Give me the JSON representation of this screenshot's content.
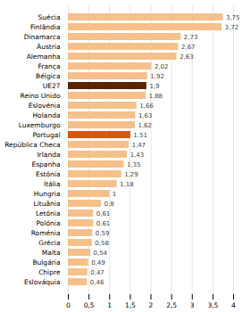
{
  "chart_data": {
    "type": "bar",
    "orientation": "horizontal",
    "categories": [
      "Eslováquia",
      "Chipre",
      "Bulgária",
      "Malta",
      "Grécia",
      "Roménia",
      "Polónia",
      "Letónia",
      "Lituânia",
      "Hungria",
      "Itália",
      "Estónia",
      "Espanha",
      "Irlanda",
      "República Checa",
      "Portugal",
      "Luxemburgo",
      "Holanda",
      "Eslovénia",
      "Reino Unido",
      "UE27",
      "Bélgica",
      "França",
      "Alemanha",
      "Áustria",
      "Dinamarca",
      "Finlândia",
      "Suécia"
    ],
    "values": [
      0.46,
      0.47,
      0.49,
      0.54,
      0.58,
      0.59,
      0.61,
      0.61,
      0.8,
      1,
      1.18,
      1.29,
      1.35,
      1.43,
      1.47,
      1.51,
      1.62,
      1.63,
      1.66,
      1.88,
      1.9,
      1.92,
      2.02,
      2.63,
      2.67,
      2.73,
      3.72,
      3.75
    ],
    "value_labels": [
      "0,46",
      "0,47",
      "0,49",
      "0,54",
      "0,58",
      "0,59",
      "0,61",
      "0,61",
      "0,8",
      "1",
      "1,18",
      "1,29",
      "1,35",
      "1,43",
      "1,47",
      "1,51",
      "1,62",
      "1,63",
      "1,66",
      "1,88",
      "1,9",
      "1,92",
      "2,02",
      "2,63",
      "2,67",
      "2,73",
      "3,72",
      "3,75"
    ],
    "colors": [
      "#f5c08a",
      "#f5c08a",
      "#f5c08a",
      "#f5c08a",
      "#f5c08a",
      "#f5c08a",
      "#f5c08a",
      "#f5c08a",
      "#f5c08a",
      "#f5c08a",
      "#f5c08a",
      "#f5c08a",
      "#f5c08a",
      "#f5c08a",
      "#f5c08a",
      "#d4570a",
      "#f5c08a",
      "#f5c08a",
      "#f5c08a",
      "#f5c08a",
      "#5a2300",
      "#f5c08a",
      "#f5c08a",
      "#f5c08a",
      "#f5c08a",
      "#f5c08a",
      "#f5c08a",
      "#f5c08a"
    ],
    "data_labels": true,
    "xlim": [
      0,
      4
    ],
    "xticks": [
      0,
      {
        "value": 0.5,
        "label": "0,5"
      },
      1,
      {
        "value": 1.5,
        "label": "1,5"
      },
      2,
      {
        "value": 2.5,
        "label": "2,5"
      },
      3,
      {
        "value": 3.5,
        "label": "3,5"
      },
      4
    ],
    "grid": true
  }
}
